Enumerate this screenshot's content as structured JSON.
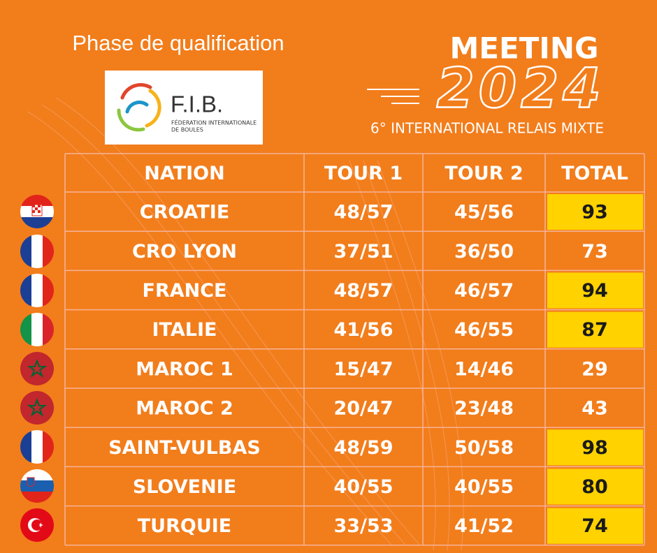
{
  "header": {
    "title": "Phase de qualification",
    "logo": {
      "name": "F.I.B.",
      "line1": "FÉDERATION INTERNATIONALE",
      "line2": "DE BOULES"
    },
    "event": "MEETING",
    "year": "2024",
    "subtitle": "6° INTERNATIONAL RELAIS MIXTE"
  },
  "table": {
    "columns": [
      "NATION",
      "TOUR 1",
      "TOUR 2",
      "TOTAL"
    ],
    "rows": [
      [
        "CROATIE",
        "48/57",
        "45/56",
        93
      ],
      [
        "CRO LYON",
        "37/51",
        "36/50",
        73
      ],
      [
        "FRANCE",
        "48/57",
        "46/57",
        94
      ],
      [
        "ITALIE",
        "41/56",
        "46/55",
        87
      ],
      [
        "MAROC 1",
        "15/47",
        "14/46",
        29
      ],
      [
        "MAROC 2",
        "20/47",
        "23/48",
        43
      ],
      [
        "SAINT-VULBAS",
        "48/59",
        "50/58",
        98
      ],
      [
        "SLOVENIE",
        "40/55",
        "40/55",
        80
      ],
      [
        "TURQUIE",
        "33/53",
        "41/52",
        74
      ]
    ],
    "highlight": [
      true,
      false,
      true,
      true,
      false,
      false,
      true,
      true,
      true
    ],
    "highlight_color": "#ffd200"
  }
}
